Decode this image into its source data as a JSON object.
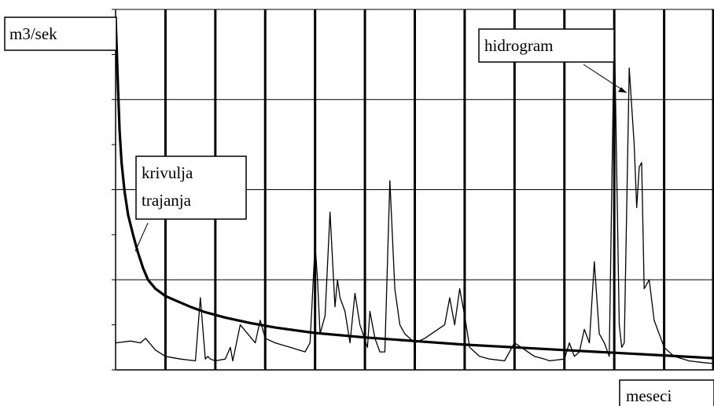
{
  "chart_data": {
    "type": "line",
    "title": "",
    "xlabel": "meseci",
    "ylabel": "m3/sek",
    "xlim": [
      0,
      12
    ],
    "ylim": [
      0,
      4
    ],
    "grid": true,
    "colors": {
      "line": "#000000",
      "grid": "#000000",
      "background": "#ffffff"
    },
    "annotations": [
      {
        "text": [
          "krivulja",
          "trajanja"
        ],
        "target_series": "krivulja trajanja"
      },
      {
        "text": [
          "hidrogram"
        ],
        "target_series": "hidrogram"
      }
    ],
    "series": [
      {
        "name": "krivulja trajanja",
        "x": [
          0.0,
          0.02,
          0.05,
          0.08,
          0.12,
          0.18,
          0.25,
          0.35,
          0.45,
          0.55,
          0.65,
          0.8,
          1.0,
          1.2,
          1.5,
          1.8,
          2.2,
          2.7,
          3.2,
          4.0,
          5.0,
          6.0,
          7.0,
          8.0,
          9.0,
          10.0,
          11.0,
          12.0
        ],
        "y": [
          3.9,
          3.6,
          3.1,
          2.65,
          2.3,
          1.98,
          1.72,
          1.5,
          1.3,
          1.13,
          1.0,
          0.9,
          0.82,
          0.77,
          0.7,
          0.64,
          0.58,
          0.52,
          0.47,
          0.41,
          0.36,
          0.32,
          0.28,
          0.25,
          0.22,
          0.19,
          0.16,
          0.13
        ]
      },
      {
        "name": "hidrogram",
        "x": [
          0.0,
          0.3,
          0.5,
          0.6,
          0.8,
          1.0,
          1.3,
          1.6,
          1.7,
          1.8,
          1.85,
          1.9,
          2.0,
          2.2,
          2.3,
          2.35,
          2.5,
          2.8,
          2.9,
          3.0,
          3.2,
          3.5,
          3.8,
          3.9,
          4.0,
          4.05,
          4.1,
          4.2,
          4.3,
          4.4,
          4.45,
          4.5,
          4.6,
          4.7,
          4.8,
          4.9,
          5.05,
          5.1,
          5.2,
          5.3,
          5.4,
          5.5,
          5.6,
          5.7,
          5.75,
          5.8,
          6.0,
          6.2,
          6.6,
          6.7,
          6.8,
          6.9,
          7.0,
          7.1,
          7.2,
          7.3,
          7.5,
          7.8,
          8.0,
          8.4,
          8.6,
          8.7,
          9.0,
          9.1,
          9.2,
          9.3,
          9.4,
          9.5,
          9.6,
          9.7,
          9.8,
          9.9,
          10.0,
          10.1,
          10.15,
          10.2,
          10.3,
          10.4,
          10.45,
          10.5,
          10.55,
          10.6,
          10.7,
          10.8,
          11.0,
          11.2,
          11.5,
          11.8,
          12.0
        ],
        "y": [
          0.3,
          0.32,
          0.3,
          0.35,
          0.22,
          0.15,
          0.12,
          0.1,
          0.8,
          0.12,
          0.15,
          0.12,
          0.1,
          0.12,
          0.25,
          0.1,
          0.5,
          0.3,
          0.55,
          0.35,
          0.3,
          0.25,
          0.2,
          0.3,
          1.4,
          1.0,
          0.4,
          0.6,
          1.75,
          0.7,
          1.0,
          0.8,
          0.65,
          0.3,
          0.85,
          0.5,
          0.25,
          0.65,
          0.35,
          0.2,
          0.2,
          2.1,
          0.9,
          0.5,
          0.45,
          0.4,
          0.3,
          0.35,
          0.5,
          0.8,
          0.5,
          0.9,
          0.6,
          0.25,
          0.2,
          0.15,
          0.12,
          0.1,
          0.3,
          0.15,
          0.12,
          0.1,
          0.12,
          0.3,
          0.15,
          0.2,
          0.45,
          0.3,
          1.2,
          0.4,
          0.3,
          0.15,
          3.85,
          0.5,
          0.25,
          0.3,
          3.35,
          2.5,
          1.8,
          2.25,
          2.3,
          0.9,
          1.0,
          0.55,
          0.25,
          0.15,
          0.1,
          0.08,
          0.07
        ]
      }
    ]
  }
}
